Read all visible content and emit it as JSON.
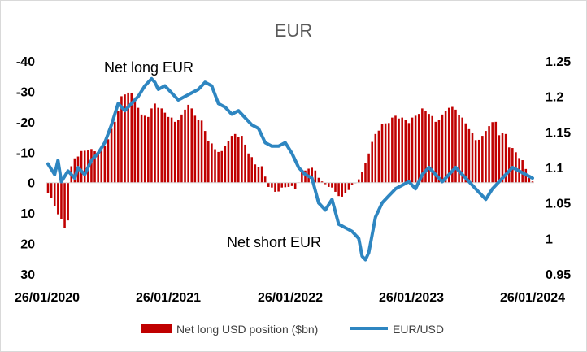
{
  "chart_data": {
    "type": "bar+line",
    "title": "EUR",
    "x_tick_labels": [
      "26/01/2020",
      "26/01/2021",
      "26/01/2022",
      "26/01/2023",
      "26/01/2024"
    ],
    "left_axis": {
      "ticks": [
        -40,
        -30,
        -20,
        -10,
        0,
        10,
        20,
        30
      ],
      "tick_labels": [
        "-40",
        "-30",
        "-20",
        "-10",
        "0",
        "10",
        "20",
        "30"
      ],
      "range": [
        -40,
        30
      ],
      "inverted": true
    },
    "right_axis": {
      "ticks": [
        0.95,
        1.0,
        1.05,
        1.1,
        1.15,
        1.2,
        1.25
      ],
      "tick_labels": [
        "0.95",
        "1",
        "1.05",
        "1.1",
        "1.15",
        "1.2",
        "1.25"
      ],
      "range": [
        0.95,
        1.25
      ]
    },
    "annotations": [
      {
        "text": "Net long EUR"
      },
      {
        "text": "Net short EUR"
      }
    ],
    "series": [
      {
        "name": "Net long USD position ($bn)",
        "type": "bar",
        "axis": "left",
        "color": "#c00000",
        "keypoints": [
          [
            0,
            3
          ],
          [
            3,
            10
          ],
          [
            5,
            15
          ],
          [
            6,
            12
          ],
          [
            7,
            -5
          ],
          [
            8,
            -8
          ],
          [
            10,
            -10
          ],
          [
            12,
            -11
          ],
          [
            15,
            -10
          ],
          [
            17,
            -12
          ],
          [
            20,
            -20
          ],
          [
            22,
            -28
          ],
          [
            24,
            -30
          ],
          [
            26,
            -28
          ],
          [
            28,
            -22
          ],
          [
            30,
            -22
          ],
          [
            32,
            -26
          ],
          [
            34,
            -24
          ],
          [
            36,
            -22
          ],
          [
            38,
            -20
          ],
          [
            40,
            -22
          ],
          [
            42,
            -26
          ],
          [
            44,
            -22
          ],
          [
            46,
            -20
          ],
          [
            48,
            -14
          ],
          [
            50,
            -11
          ],
          [
            52,
            -10
          ],
          [
            54,
            -14
          ],
          [
            56,
            -16
          ],
          [
            58,
            -15
          ],
          [
            60,
            -10
          ],
          [
            62,
            -6
          ],
          [
            64,
            -5
          ],
          [
            66,
            1
          ],
          [
            68,
            3
          ],
          [
            70,
            2
          ],
          [
            72,
            1
          ],
          [
            74,
            2
          ],
          [
            76,
            -3
          ],
          [
            78,
            -5
          ],
          [
            80,
            -4
          ],
          [
            82,
            0
          ],
          [
            84,
            1
          ],
          [
            86,
            3
          ],
          [
            88,
            5
          ],
          [
            90,
            2
          ],
          [
            92,
            0
          ],
          [
            94,
            -3
          ],
          [
            96,
            -10
          ],
          [
            98,
            -16
          ],
          [
            100,
            -19
          ],
          [
            102,
            -20
          ],
          [
            104,
            -22
          ],
          [
            106,
            -21
          ],
          [
            108,
            -20
          ],
          [
            110,
            -22
          ],
          [
            112,
            -24
          ],
          [
            114,
            -23
          ],
          [
            116,
            -20
          ],
          [
            118,
            -22
          ],
          [
            120,
            -25
          ],
          [
            122,
            -24
          ],
          [
            124,
            -21
          ],
          [
            126,
            -18
          ],
          [
            128,
            -14
          ],
          [
            130,
            -15
          ],
          [
            132,
            -19
          ],
          [
            134,
            -20
          ],
          [
            135,
            -16
          ],
          [
            137,
            -16
          ],
          [
            138,
            -12
          ],
          [
            140,
            -10
          ],
          [
            142,
            -7
          ],
          [
            144,
            -2
          ],
          [
            145,
            0
          ]
        ]
      },
      {
        "name": "EUR/USD",
        "type": "line",
        "axis": "right",
        "color": "#2e86c1",
        "keypoints": [
          [
            0,
            1.105
          ],
          [
            2,
            1.09
          ],
          [
            3,
            1.11
          ],
          [
            4,
            1.08
          ],
          [
            6,
            1.095
          ],
          [
            8,
            1.085
          ],
          [
            9,
            1.1
          ],
          [
            11,
            1.09
          ],
          [
            13,
            1.11
          ],
          [
            15,
            1.12
          ],
          [
            17,
            1.135
          ],
          [
            19,
            1.16
          ],
          [
            21,
            1.19
          ],
          [
            23,
            1.18
          ],
          [
            25,
            1.19
          ],
          [
            27,
            1.2
          ],
          [
            29,
            1.215
          ],
          [
            31,
            1.225
          ],
          [
            32,
            1.22
          ],
          [
            33,
            1.21
          ],
          [
            35,
            1.215
          ],
          [
            37,
            1.205
          ],
          [
            39,
            1.195
          ],
          [
            41,
            1.2
          ],
          [
            43,
            1.205
          ],
          [
            45,
            1.21
          ],
          [
            47,
            1.22
          ],
          [
            49,
            1.215
          ],
          [
            51,
            1.19
          ],
          [
            53,
            1.185
          ],
          [
            55,
            1.175
          ],
          [
            57,
            1.18
          ],
          [
            59,
            1.17
          ],
          [
            61,
            1.16
          ],
          [
            63,
            1.155
          ],
          [
            65,
            1.135
          ],
          [
            67,
            1.13
          ],
          [
            69,
            1.13
          ],
          [
            71,
            1.135
          ],
          [
            73,
            1.12
          ],
          [
            75,
            1.1
          ],
          [
            77,
            1.09
          ],
          [
            79,
            1.085
          ],
          [
            81,
            1.05
          ],
          [
            83,
            1.04
          ],
          [
            85,
            1.055
          ],
          [
            87,
            1.02
          ],
          [
            89,
            1.015
          ],
          [
            91,
            1.01
          ],
          [
            93,
            1.0
          ],
          [
            94,
            0.975
          ],
          [
            95,
            0.97
          ],
          [
            96,
            0.98
          ],
          [
            98,
            1.03
          ],
          [
            100,
            1.05
          ],
          [
            102,
            1.06
          ],
          [
            104,
            1.07
          ],
          [
            106,
            1.075
          ],
          [
            108,
            1.08
          ],
          [
            110,
            1.07
          ],
          [
            112,
            1.09
          ],
          [
            114,
            1.1
          ],
          [
            116,
            1.09
          ],
          [
            118,
            1.08
          ],
          [
            120,
            1.09
          ],
          [
            122,
            1.1
          ],
          [
            124,
            1.09
          ],
          [
            126,
            1.08
          ],
          [
            128,
            1.07
          ],
          [
            130,
            1.06
          ],
          [
            131,
            1.055
          ],
          [
            133,
            1.07
          ],
          [
            135,
            1.08
          ],
          [
            137,
            1.09
          ],
          [
            139,
            1.1
          ],
          [
            141,
            1.095
          ],
          [
            143,
            1.09
          ],
          [
            145,
            1.085
          ]
        ]
      }
    ],
    "legend_position": "bottom",
    "grid": false
  }
}
